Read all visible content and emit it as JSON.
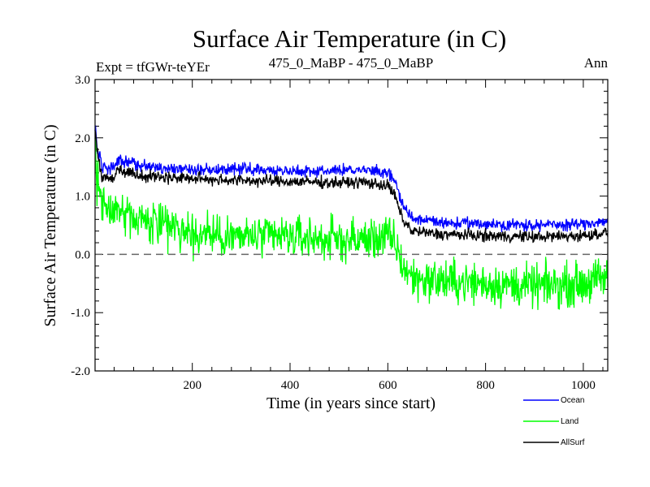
{
  "chart_data": {
    "type": "line",
    "title": "Surface Air Temperature (in C)",
    "subtitle_left": "Expt = tfGWr-teYEr",
    "subtitle_center": "475_0_MaBP - 475_0_MaBP",
    "subtitle_right": "Ann",
    "xlabel": "Time (in years since start)",
    "ylabel": "Surface Air Temperature (in C)",
    "xlim": [
      1,
      1050
    ],
    "ylim": [
      -2.0,
      3.0
    ],
    "x_ticks": [
      200,
      400,
      600,
      800,
      1000
    ],
    "x_tick_labels": [
      "200",
      "400",
      "600",
      "800",
      "1000"
    ],
    "y_ticks": [
      -2.0,
      -1.0,
      0.0,
      1.0,
      2.0,
      3.0
    ],
    "y_tick_labels": [
      "-2.0",
      "-1.0",
      "0.0",
      "1.0",
      "2.0",
      "3.0"
    ],
    "reference_line": 0.0,
    "legend_position": "bottom-right",
    "series": [
      {
        "name": "Ocean",
        "color": "#0000ff",
        "x": [
          1,
          5,
          15,
          30,
          50,
          100,
          200,
          300,
          400,
          500,
          550,
          600,
          615,
          630,
          650,
          700,
          800,
          900,
          1000,
          1050
        ],
        "values": [
          2.25,
          1.85,
          1.5,
          1.45,
          1.6,
          1.52,
          1.45,
          1.47,
          1.43,
          1.44,
          1.45,
          1.4,
          1.25,
          0.85,
          0.62,
          0.55,
          0.52,
          0.5,
          0.52,
          0.58
        ],
        "noise": 0.05
      },
      {
        "name": "Land",
        "color": "#00ff00",
        "x": [
          1,
          5,
          15,
          30,
          50,
          100,
          200,
          300,
          400,
          500,
          550,
          600,
          615,
          630,
          650,
          700,
          800,
          900,
          1000,
          1050
        ],
        "values": [
          1.9,
          1.3,
          0.9,
          0.8,
          0.75,
          0.6,
          0.35,
          0.3,
          0.3,
          0.25,
          0.25,
          0.3,
          0.2,
          -0.2,
          -0.4,
          -0.45,
          -0.5,
          -0.55,
          -0.5,
          -0.4
        ],
        "noise": 0.18
      },
      {
        "name": "AllSurf",
        "color": "#000000",
        "x": [
          1,
          5,
          15,
          30,
          50,
          100,
          200,
          300,
          400,
          500,
          550,
          600,
          615,
          630,
          650,
          700,
          800,
          900,
          1000,
          1050
        ],
        "values": [
          2.2,
          1.75,
          1.35,
          1.3,
          1.45,
          1.35,
          1.3,
          1.27,
          1.25,
          1.23,
          1.24,
          1.18,
          1.0,
          0.6,
          0.4,
          0.35,
          0.32,
          0.3,
          0.32,
          0.38
        ],
        "noise": 0.05
      }
    ]
  }
}
